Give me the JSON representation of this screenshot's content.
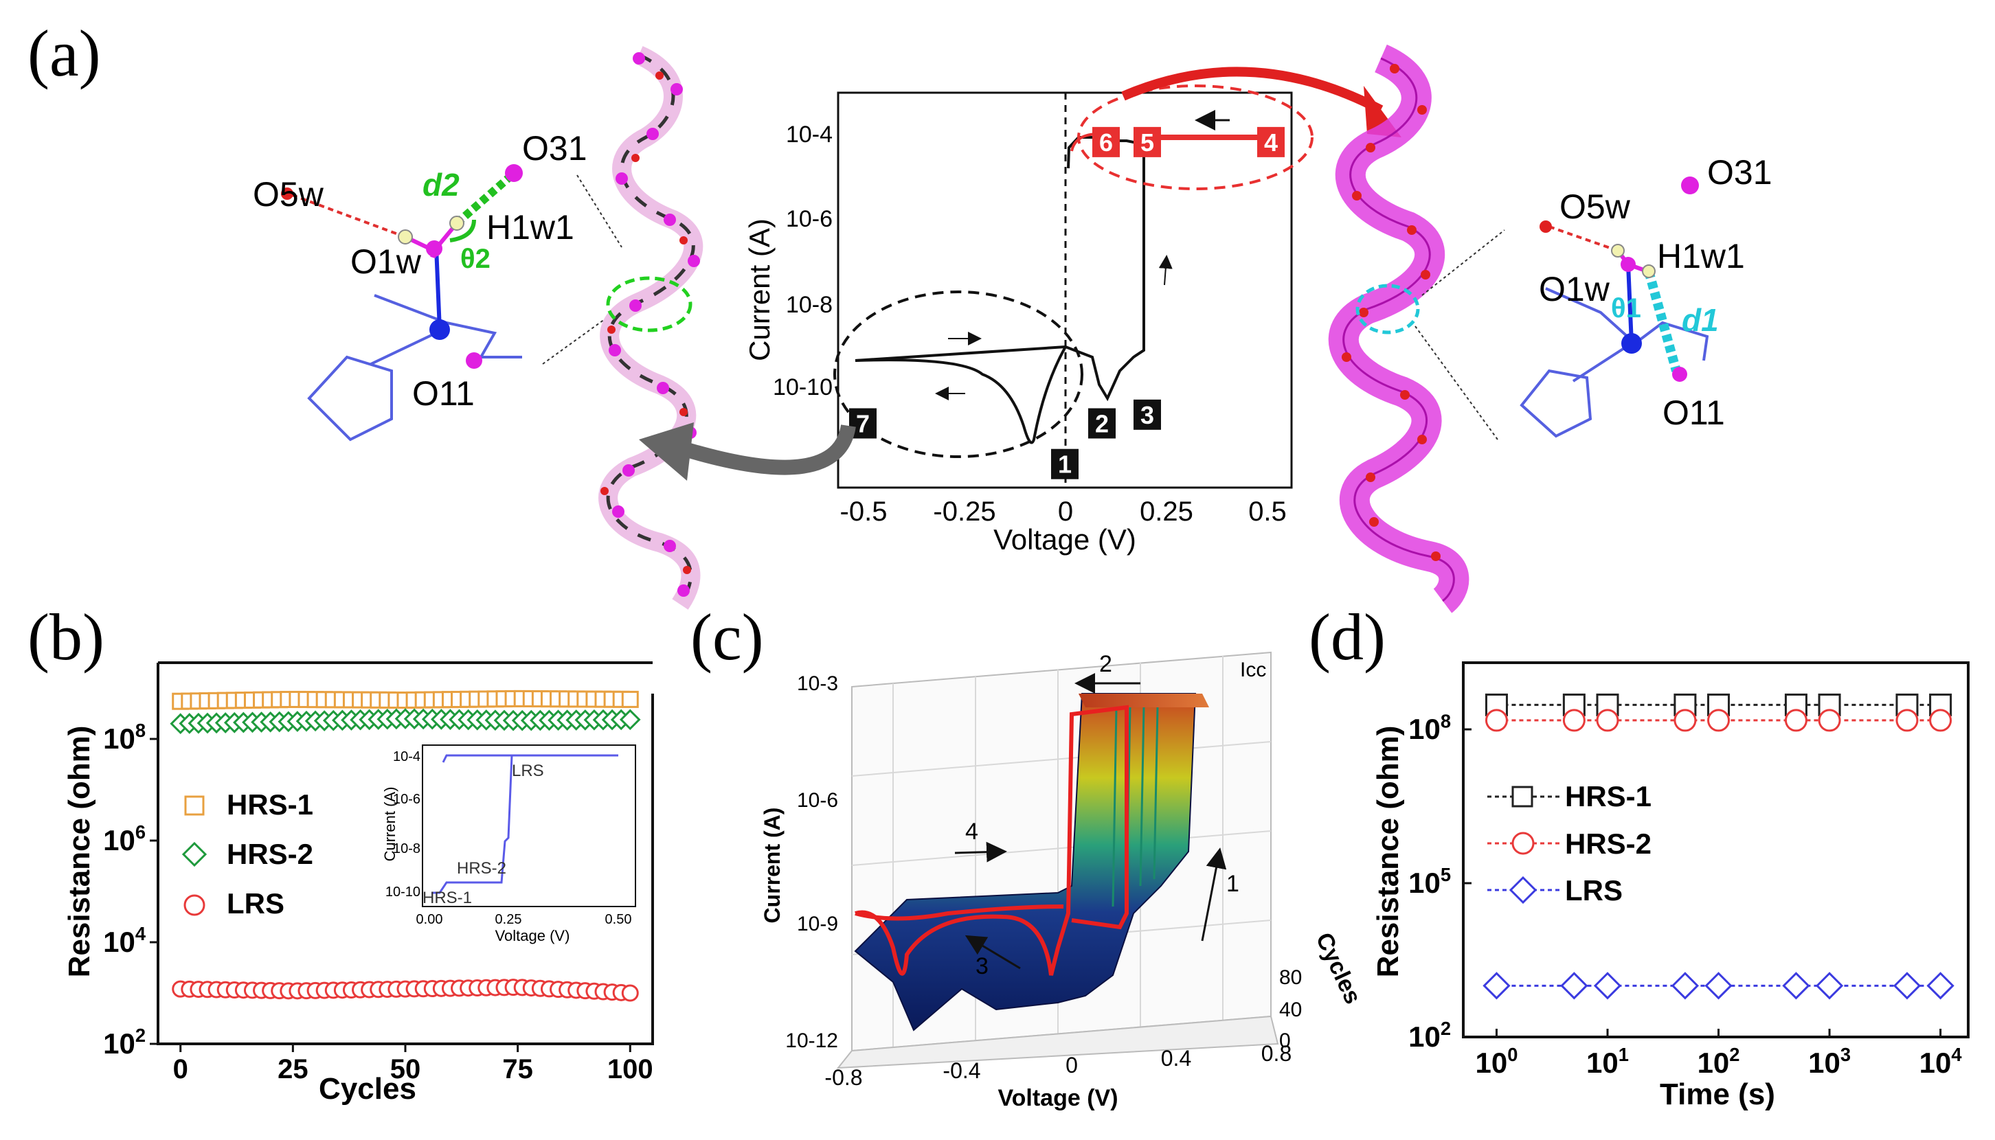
{
  "panel_labels": {
    "a": "(a)",
    "b": "(b)",
    "c": "(c)",
    "d": "(d)"
  },
  "colors": {
    "hrs1": "#E8A040",
    "hrs2": "#1E9A3C",
    "lrs": "#E83A3A",
    "lrs_d": "#3B3BE0",
    "hrs1_d": "#222222",
    "hrs2_d": "#E83A3A",
    "magenta": "#E020E0",
    "cyan": "#22C8D8"
  },
  "molecule_left": {
    "labels": [
      "O31",
      "O5w",
      "d2",
      "H1w1",
      "O1w",
      "θ2",
      "O11"
    ]
  },
  "molecule_right": {
    "labels": [
      "O31",
      "O5w",
      "H1w1",
      "O1w",
      "θ1",
      "d1",
      "O11"
    ]
  },
  "chart_data": [
    {
      "panel": "a-inset",
      "type": "line",
      "xlabel": "Voltage (V)",
      "ylabel": "Current (A)",
      "xlim": [
        -0.55,
        0.55
      ],
      "ylim_log10": [
        -11,
        -3
      ],
      "xticks": [
        "-0.5",
        "-0.25",
        "0",
        "0.25",
        "0.5"
      ],
      "yticks": [
        "10-10",
        "10-8",
        "10-6",
        "10-4"
      ],
      "step_markers": [
        {
          "label": "1",
          "x": 0.0,
          "y": 3e-11
        },
        {
          "label": "2",
          "x": 0.09,
          "y": 2e-10
        },
        {
          "label": "3",
          "x": 0.2,
          "y": 3e-10
        },
        {
          "label": "4",
          "x": 0.5,
          "y": 0.0001
        },
        {
          "label": "5",
          "x": 0.2,
          "y": 0.0001
        },
        {
          "label": "6",
          "x": 0.1,
          "y": 0.0001
        },
        {
          "label": "7",
          "x": -0.49,
          "y": 2e-10
        }
      ],
      "series": [
        {
          "values": [
            [
              0.0,
              4e-11
            ],
            [
              0.1,
              3e-10
            ],
            [
              0.2,
              3e-10
            ],
            [
              0.2,
              0.0001
            ],
            [
              0.5,
              0.0001
            ],
            [
              0.03,
              0.0001
            ],
            [
              0.0,
              4e-05
            ]
          ]
        },
        {
          "values": [
            [
              -0.5,
              2.5e-10
            ],
            [
              0.0,
              5e-10
            ],
            [
              -0.08,
              1e-11
            ],
            [
              -0.3,
              2e-10
            ],
            [
              -0.5,
              2.5e-10
            ]
          ]
        }
      ]
    },
    {
      "panel": "b",
      "type": "scatter",
      "xlabel": "Cycles",
      "ylabel": "Resistance (ohm)",
      "xlim": [
        -5,
        105
      ],
      "ylim_log10": [
        2,
        9.5
      ],
      "xticks": [
        "0",
        "25",
        "50",
        "75",
        "100"
      ],
      "yticks": [
        "10^2",
        "10^4",
        "10^6",
        "10^8"
      ],
      "series": [
        {
          "name": "HRS-1",
          "marker": "square",
          "values": [
            550000000.0,
            600000000.0,
            580000000.0,
            620000000.0,
            600000000.0
          ]
        },
        {
          "name": "HRS-2",
          "marker": "diamond",
          "values": [
            200000000.0,
            220000000.0,
            250000000.0,
            230000000.0,
            240000000.0
          ]
        },
        {
          "name": "LRS",
          "marker": "circle",
          "values": [
            1200.0,
            1100.0,
            1200.0,
            1300.0,
            1000.0
          ]
        }
      ],
      "x": [
        0,
        25,
        50,
        75,
        100
      ],
      "inset": {
        "xlabel": "Voltage (V)",
        "ylabel": "Current (A)",
        "xticks": [
          "0.00",
          "0.25",
          "0.50"
        ],
        "yticks": [
          "10-10",
          "10-8",
          "10-6",
          "10-4"
        ],
        "labels": [
          "LRS",
          "HRS-2",
          "HRS-1"
        ]
      }
    },
    {
      "panel": "c",
      "type": "area",
      "xlabel": "Voltage (V)",
      "ylabel": "Current (A)",
      "zlabel": "Cycles",
      "xticks": [
        "-0.8",
        "-0.4",
        "0",
        "0.4",
        "0.8"
      ],
      "yticks": [
        "10-12",
        "10-9",
        "10-6",
        "10-3"
      ],
      "cycle_ticks": [
        "0",
        "40",
        "80"
      ],
      "annotations": [
        "1",
        "2",
        "3",
        "4",
        "Icc"
      ]
    },
    {
      "panel": "d",
      "type": "scatter",
      "xlabel": "Time (s)",
      "ylabel": "Resistance (ohm)",
      "xticks": [
        "10^0",
        "10^1",
        "10^2",
        "10^3",
        "10^4"
      ],
      "yticks": [
        "10^2",
        "10^5",
        "10^8"
      ],
      "x": [
        1,
        5,
        10,
        50,
        100,
        500,
        1000,
        5000,
        10000
      ],
      "series": [
        {
          "name": "HRS-1",
          "marker": "square",
          "values": [
            300000000.0,
            300000000.0,
            300000000.0,
            300000000.0,
            300000000.0,
            300000000.0,
            300000000.0,
            300000000.0,
            300000000.0
          ]
        },
        {
          "name": "HRS-2",
          "marker": "circle",
          "values": [
            150000000.0,
            150000000.0,
            150000000.0,
            150000000.0,
            150000000.0,
            150000000.0,
            150000000.0,
            150000000.0,
            150000000.0
          ]
        },
        {
          "name": "LRS",
          "marker": "diamond",
          "values": [
            1000.0,
            1000.0,
            1000.0,
            1000.0,
            1000.0,
            1000.0,
            1000.0,
            1000.0,
            1000.0
          ]
        }
      ]
    }
  ]
}
